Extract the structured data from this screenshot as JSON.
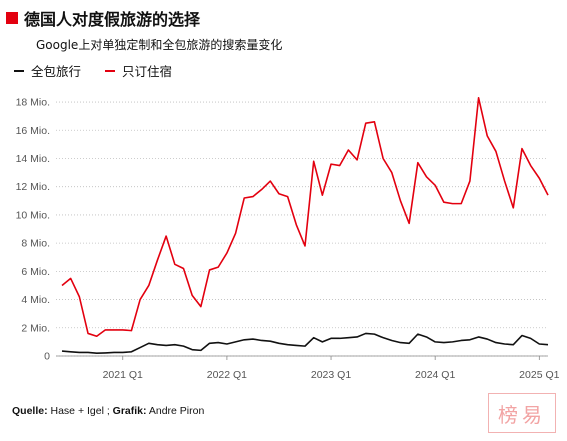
{
  "header": {
    "title": "德国人对度假旅游的选择",
    "subtitle": "Google上对单独定制和全包旅游的搜索量变化"
  },
  "legend": [
    {
      "label": "全包旅行",
      "color": "#111111"
    },
    {
      "label": "只订住宿",
      "color": "#e3000f"
    }
  ],
  "source": {
    "quelle_label": "Quelle:",
    "quelle_value": " Hase + Igel ; ",
    "grafik_label": "Grafik:",
    "grafik_value": " Andre Piron"
  },
  "watermark_text": "榜易",
  "chart_data": {
    "type": "line",
    "x_tick_labels": [
      "2021 Q1",
      "2022 Q1",
      "2023 Q1",
      "2024 Q1",
      "2025 Q1"
    ],
    "x_tick_index": [
      7,
      19,
      31,
      43,
      55
    ],
    "y_ticks": [
      0,
      2,
      4,
      6,
      8,
      10,
      12,
      14,
      16,
      18
    ],
    "y_tick_labels": [
      "0",
      "2 Mio.",
      "4 Mio.",
      "6 Mio.",
      "8 Mio.",
      "10 Mio.",
      "12 Mio.",
      "14 Mio.",
      "16 Mio.",
      "18 Mio."
    ],
    "ylim": [
      0,
      18.5
    ],
    "grid": "horizontal dotted",
    "series": [
      {
        "name": "只订住宿",
        "color": "#e3000f",
        "values": [
          5.0,
          5.5,
          4.2,
          1.6,
          1.4,
          1.85,
          1.85,
          1.85,
          1.8,
          4.0,
          5.0,
          6.8,
          8.5,
          6.5,
          6.2,
          4.3,
          3.5,
          6.1,
          6.3,
          7.3,
          8.7,
          11.2,
          11.3,
          11.8,
          12.4,
          11.5,
          11.3,
          9.3,
          7.8,
          13.8,
          11.4,
          13.6,
          13.5,
          14.6,
          13.9,
          16.5,
          16.6,
          14.0,
          13.0,
          11.0,
          9.4,
          13.7,
          12.7,
          12.1,
          10.9,
          10.8,
          10.8,
          12.4,
          18.3,
          15.6,
          14.5,
          12.4,
          10.5,
          14.7,
          13.5,
          12.6,
          11.4
        ],
        "peak_label": null
      },
      {
        "name": "全包旅行",
        "color": "#111111",
        "values": [
          0.35,
          0.3,
          0.25,
          0.25,
          0.2,
          0.22,
          0.25,
          0.25,
          0.3,
          0.6,
          0.9,
          0.8,
          0.75,
          0.8,
          0.7,
          0.45,
          0.4,
          0.9,
          0.95,
          0.85,
          1.0,
          1.15,
          1.2,
          1.1,
          1.05,
          0.9,
          0.8,
          0.75,
          0.7,
          1.3,
          1.0,
          1.25,
          1.25,
          1.3,
          1.35,
          1.6,
          1.55,
          1.3,
          1.1,
          0.95,
          0.9,
          1.55,
          1.35,
          1.0,
          0.95,
          1.0,
          1.1,
          1.15,
          1.35,
          1.2,
          0.95,
          0.85,
          0.8,
          1.45,
          1.25,
          0.85,
          0.8
        ]
      }
    ]
  }
}
